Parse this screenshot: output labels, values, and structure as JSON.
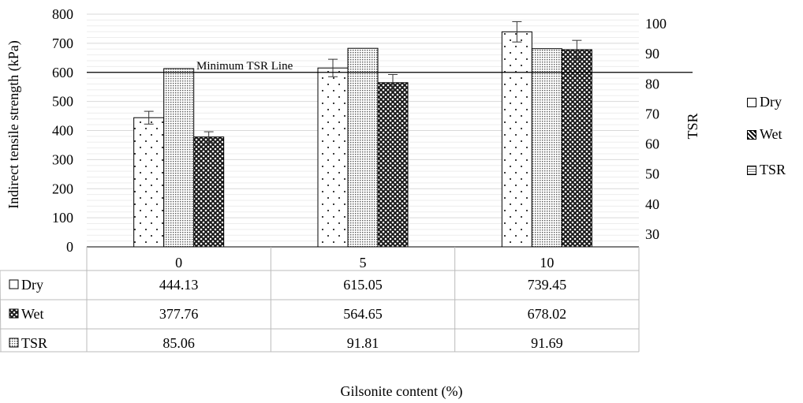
{
  "chart_data": {
    "type": "bar",
    "categories": [
      "0",
      "5",
      "10"
    ],
    "series": [
      {
        "name": "Dry",
        "axis": "left",
        "values": [
          444.13,
          615.05,
          739.45
        ],
        "errors": [
          22,
          30,
          35
        ]
      },
      {
        "name": "TSR",
        "axis": "right",
        "values": [
          85.06,
          91.81,
          91.69
        ]
      },
      {
        "name": "Wet",
        "axis": "left",
        "values": [
          377.76,
          564.65,
          678.02
        ],
        "errors": [
          18,
          28,
          32
        ]
      }
    ],
    "bar_order": [
      "Dry",
      "TSR",
      "Wet"
    ],
    "ylabel": "Indirect tensile strength (kPa)",
    "y2label": "TSR",
    "xlabel": "Gilsonite content (%)",
    "ylim": [
      0,
      800
    ],
    "y_ticks": [
      "0",
      "100",
      "200",
      "300",
      "400",
      "500",
      "600",
      "700",
      "800"
    ],
    "y2lim": [
      25,
      100
    ],
    "y2_ticks": [
      "30",
      "40",
      "50",
      "60",
      "70",
      "80",
      "90",
      "100"
    ],
    "reference_line": {
      "label": "Minimum TSR Line",
      "y": 600
    },
    "legend": [
      "Dry",
      "Wet",
      "TSR"
    ],
    "legend_position": "right",
    "grid": true,
    "data_table": {
      "rows": [
        {
          "label": "Dry",
          "values": [
            "444.13",
            "615.05",
            "739.45"
          ]
        },
        {
          "label": "Wet",
          "values": [
            "377.76",
            "564.65",
            "678.02"
          ]
        },
        {
          "label": "TSR",
          "values": [
            "85.06",
            "91.81",
            "91.69"
          ]
        }
      ]
    }
  }
}
